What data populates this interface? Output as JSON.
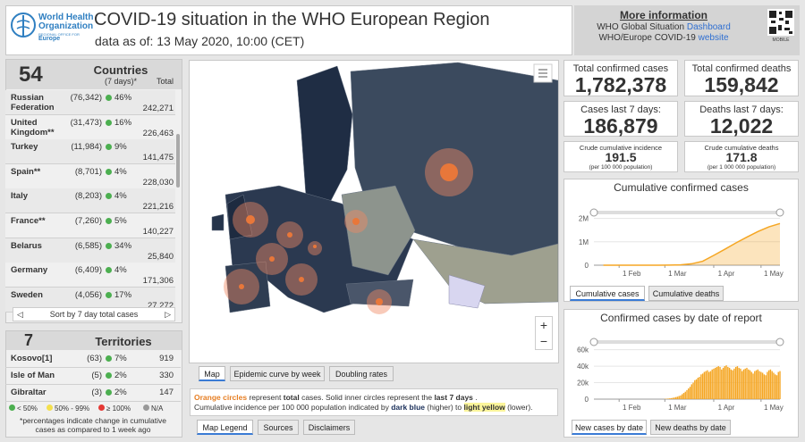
{
  "logo": {
    "line1": "World Health",
    "line2": "Organization",
    "office": "REGIONAL OFFICE FOR",
    "region": "Europe"
  },
  "title": "COVID-19 situation in the WHO European Region",
  "subtitle": "data as of: 13 May 2020, 10:00 (CET)",
  "more_info": {
    "heading": "More information",
    "line1": "WHO Global Situation",
    "link1": "Dashboard",
    "line2": "WHO/Europe COVID-19",
    "link2": "website",
    "qr_label": "MOBILE"
  },
  "countries": {
    "count": "54",
    "heading": "Countries",
    "period": "(7 days)*",
    "total_label": "Total",
    "rows": [
      {
        "name": "Russian Federation",
        "week": "(76,342)",
        "pct": "46%",
        "total": "242,271"
      },
      {
        "name": "United Kingdom**",
        "week": "(31,473)",
        "pct": "16%",
        "total": "226,463"
      },
      {
        "name": "Turkey",
        "week": "(11,984)",
        "pct": "9%",
        "total": "141,475"
      },
      {
        "name": "Spain**",
        "week": "(8,701)",
        "pct": "4%",
        "total": "228,030"
      },
      {
        "name": "Italy",
        "week": "(8,203)",
        "pct": "4%",
        "total": "221,216"
      },
      {
        "name": "France**",
        "week": "(7,260)",
        "pct": "5%",
        "total": "140,227"
      },
      {
        "name": "Belarus",
        "week": "(6,585)",
        "pct": "34%",
        "total": "25,840"
      },
      {
        "name": "Germany",
        "week": "(6,409)",
        "pct": "4%",
        "total": "171,306"
      },
      {
        "name": "Sweden",
        "week": "(4,056)",
        "pct": "17%",
        "total": "27,272"
      }
    ],
    "sort_label": "Sort by 7 day total cases"
  },
  "territories": {
    "count": "7",
    "heading": "Territories",
    "rows": [
      {
        "name": "Kosovo[1]",
        "week": "(63)",
        "pct": "7%",
        "total": "919"
      },
      {
        "name": "Isle of Man",
        "week": "(5)",
        "pct": "2%",
        "total": "330"
      },
      {
        "name": "Gibraltar",
        "week": "(3)",
        "pct": "2%",
        "total": "147"
      }
    ],
    "legend": [
      "< 50%",
      "50% - 99%",
      "≥ 100%",
      "N/A"
    ],
    "footnote": "*percentages indicate change in cumulative cases as compared to 1 week ago"
  },
  "map": {
    "tabs": [
      "Map",
      "Epidemic curve by week",
      "Doubling rates"
    ],
    "zoom_in": "+",
    "zoom_out": "−"
  },
  "legend_text": {
    "line1": [
      "Orange circles",
      "represent",
      "total",
      "cases.  Solid inner circles represent the",
      "last 7 days",
      "."
    ],
    "line2": [
      "Cumulative incidence per 100 000 population indicated by",
      "dark blue",
      "(higher) to",
      "light yellow",
      "(lower)."
    ]
  },
  "bottom_tabs": [
    "Map Legend",
    "Sources",
    "Disclaimers"
  ],
  "kpis": [
    {
      "label": "Total confirmed cases",
      "value": "1,782,378"
    },
    {
      "label": "Total confirmed deaths",
      "value": "159,842"
    },
    {
      "label": "Cases last 7 days:",
      "value": "186,879"
    },
    {
      "label": "Deaths last 7 days:",
      "value": "12,022"
    },
    {
      "label": "Crude cumulative incidence",
      "value": "191.5",
      "note": "(per 100 000 population)"
    },
    {
      "label": "Crude cumulative deaths",
      "value": "171.8",
      "note": "(per 1 000 000 population)"
    }
  ],
  "charts": [
    {
      "type": "area",
      "title": "Cumulative confirmed cases",
      "color": "#f5a623",
      "x": [
        22,
        29,
        36,
        43,
        50,
        57,
        64,
        71,
        78,
        85,
        92,
        99,
        106,
        113,
        120,
        127,
        134
      ],
      "values": [
        0,
        0,
        50,
        100,
        150,
        300,
        3000,
        15000,
        60000,
        170000,
        420000,
        680000,
        950000,
        1200000,
        1440000,
        1640000,
        1782378
      ],
      "xlim": [
        16,
        134
      ],
      "ylim": [
        0,
        2100000
      ],
      "xticks": [
        {
          "value": 32,
          "label": "1 Feb"
        },
        {
          "value": 61,
          "label": "1 Mar"
        },
        {
          "value": 92,
          "label": "1 Apr"
        },
        {
          "value": 122,
          "label": "1 May"
        }
      ],
      "yticks": [
        0,
        {
          "value": 1000000,
          "label": "1M"
        },
        {
          "value": 2000000,
          "label": "2M"
        }
      ],
      "tabs": [
        "Cumulative cases",
        "Cumulative deaths"
      ]
    },
    {
      "type": "bar",
      "title": "Confirmed cases by date of report",
      "color": "#f5a623",
      "x": [
        61,
        62,
        63,
        64,
        65,
        66,
        67,
        68,
        69,
        70,
        71,
        72,
        73,
        74,
        75,
        76,
        77,
        78,
        79,
        80,
        81,
        82,
        83,
        84,
        85,
        86,
        87,
        88,
        89,
        90,
        91,
        92,
        93,
        94,
        95,
        96,
        97,
        98,
        99,
        100,
        101,
        102,
        103,
        104,
        105,
        106,
        107,
        108,
        109,
        110,
        111,
        112,
        113,
        114,
        115,
        116,
        117,
        118,
        119,
        120,
        121,
        122,
        123,
        124,
        125,
        126,
        127,
        128,
        129,
        130,
        131,
        132,
        133,
        134
      ],
      "values": [
        300,
        500,
        700,
        900,
        1200,
        1600,
        2000,
        2500,
        3000,
        3800,
        4500,
        6000,
        7500,
        9000,
        11000,
        13000,
        15000,
        18000,
        20000,
        23000,
        24000,
        26000,
        27000,
        30000,
        31000,
        33000,
        34000,
        35000,
        33000,
        34000,
        36000,
        37000,
        38000,
        39000,
        40000,
        39000,
        36000,
        38000,
        40000,
        41000,
        39000,
        38000,
        36000,
        35000,
        37000,
        39000,
        40000,
        38000,
        37000,
        34000,
        36000,
        37000,
        38000,
        36000,
        35000,
        33000,
        31000,
        34000,
        35000,
        36000,
        34000,
        33000,
        32000,
        30000,
        29000,
        33000,
        35000,
        36000,
        34000,
        32000,
        30000,
        29000,
        33000,
        34000
      ],
      "xlim": [
        16,
        134
      ],
      "ylim": [
        0,
        65000
      ],
      "xticks": [
        {
          "value": 32,
          "label": "1 Feb"
        },
        {
          "value": 61,
          "label": "1 Mar"
        },
        {
          "value": 92,
          "label": "1 Apr"
        },
        {
          "value": 122,
          "label": "1 May"
        }
      ],
      "yticks": [
        0,
        {
          "value": 20000,
          "label": "20k"
        },
        {
          "value": 40000,
          "label": "40k"
        },
        {
          "value": 60000,
          "label": "60k"
        }
      ],
      "tabs": [
        "New cases by date",
        "New deaths by date"
      ]
    }
  ]
}
